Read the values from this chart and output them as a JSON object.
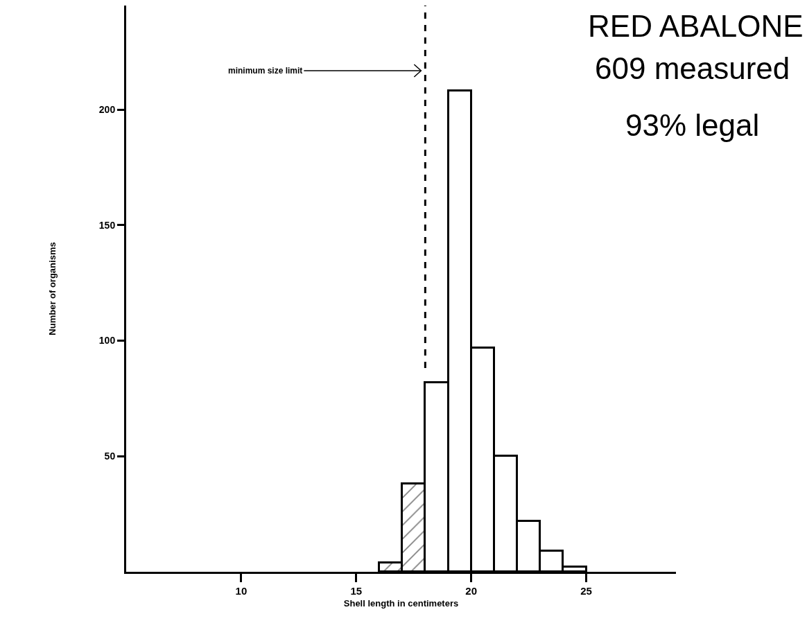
{
  "chart_data": {
    "type": "histogram",
    "title": "RED ABALONE",
    "annotations": [
      "609 measured",
      "93% legal"
    ],
    "xlabel": "Shell length in centimeters",
    "ylabel": "Number of organisms",
    "bins": [
      16,
      17,
      18,
      19,
      20,
      21,
      22,
      23,
      24,
      25
    ],
    "values": [
      4,
      38,
      82,
      208,
      97,
      50,
      22,
      9,
      2
    ],
    "color": "#000000",
    "xlim": [
      5,
      28.9
    ],
    "xticks": [
      10,
      15,
      20,
      25
    ],
    "ylim": [
      0,
      245
    ],
    "yticks": [
      50,
      100,
      150,
      200
    ],
    "ref_lines": [
      {
        "axis": "x",
        "value": 18,
        "label": "minimum size limit",
        "line_style": "dashed"
      }
    ]
  }
}
